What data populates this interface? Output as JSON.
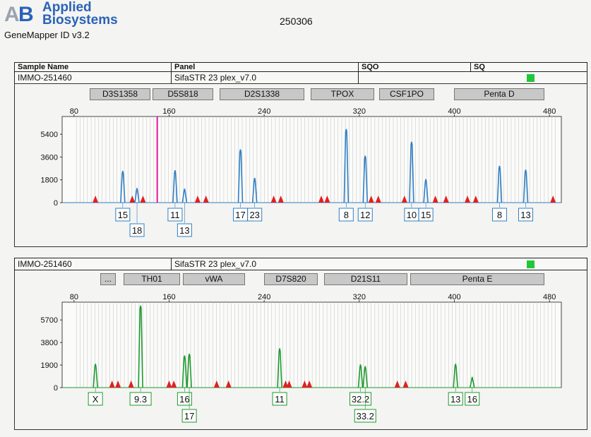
{
  "header": {
    "brand_line1": "Applied",
    "brand_line2": "Biosystems",
    "product": "GeneMapper ID v3.2",
    "run_id": "250306"
  },
  "info_table": {
    "col_sample": "Sample Name",
    "col_panel": "Panel",
    "col_sqo": "SQO",
    "col_sq": "SQ",
    "sample": "IMMO-251460",
    "panel": "SifaSTR 23 plex_v7.0"
  },
  "panel2": {
    "sample": "IMMO-251460",
    "panel": "SifaSTR 23 plex_v7.0",
    "ellipsis": "..."
  },
  "colors": {
    "blue": "#2f7fc4",
    "green": "#1e9a2e",
    "marker": "#e02020",
    "quality": "#22c63a",
    "pink": "#e0189a"
  },
  "chart_data": [
    {
      "type": "line",
      "dye": "blue",
      "x_ticks": [
        80,
        160,
        240,
        320,
        400,
        480
      ],
      "y_ticks": [
        0,
        1800,
        3600,
        5400
      ],
      "xlim": [
        70,
        490
      ],
      "ylim": [
        0,
        6800
      ],
      "loci": [
        "D3S1358",
        "D5S818",
        "D2S1338",
        "TPOX",
        "CSF1PO",
        "Penta D"
      ],
      "peaks": [
        {
          "x": 121,
          "height": 2500
        },
        {
          "x": 133,
          "height": 1150
        },
        {
          "x": 165,
          "height": 2550
        },
        {
          "x": 173,
          "height": 1100
        },
        {
          "x": 220,
          "height": 4200
        },
        {
          "x": 232,
          "height": 1950
        },
        {
          "x": 309,
          "height": 5800
        },
        {
          "x": 325,
          "height": 3700
        },
        {
          "x": 364,
          "height": 4800
        },
        {
          "x": 376,
          "height": 1850
        },
        {
          "x": 438,
          "height": 2900
        },
        {
          "x": 460,
          "height": 2600
        }
      ],
      "markers": [
        98,
        129,
        138,
        184,
        191,
        248,
        254,
        288,
        293,
        330,
        336,
        358,
        384,
        393,
        411,
        418,
        483
      ],
      "allele_labels": [
        {
          "text": "15",
          "x": 121,
          "row": 0
        },
        {
          "text": "18",
          "x": 133,
          "row": 1
        },
        {
          "text": "11",
          "x": 165,
          "row": 0
        },
        {
          "text": "13",
          "x": 173,
          "row": 1
        },
        {
          "text": "17",
          "x": 220,
          "row": 0
        },
        {
          "text": "23",
          "x": 232,
          "row": 0
        },
        {
          "text": "8",
          "x": 309,
          "row": 0
        },
        {
          "text": "12",
          "x": 325,
          "row": 0
        },
        {
          "text": "10",
          "x": 364,
          "row": 0
        },
        {
          "text": "15",
          "x": 376,
          "row": 0
        },
        {
          "text": "8",
          "x": 438,
          "row": 0
        },
        {
          "text": "13",
          "x": 460,
          "row": 0
        }
      ]
    },
    {
      "type": "line",
      "dye": "green",
      "x_ticks": [
        80,
        160,
        240,
        320,
        400,
        480
      ],
      "y_ticks": [
        0,
        1900,
        3800,
        5700
      ],
      "xlim": [
        70,
        490
      ],
      "ylim": [
        0,
        7200
      ],
      "loci": [
        "TH01",
        "vWA",
        "D7S820",
        "D21S11",
        "Penta E"
      ],
      "peaks": [
        {
          "x": 98,
          "height": 2000
        },
        {
          "x": 136,
          "height": 6900
        },
        {
          "x": 173,
          "height": 2700
        },
        {
          "x": 177,
          "height": 2850
        },
        {
          "x": 253,
          "height": 3300
        },
        {
          "x": 321,
          "height": 1950
        },
        {
          "x": 325,
          "height": 1800
        },
        {
          "x": 401,
          "height": 2000
        },
        {
          "x": 415,
          "height": 900
        }
      ],
      "markers": [
        112,
        117,
        128,
        160,
        164,
        200,
        210,
        258,
        261,
        274,
        278,
        352,
        359
      ],
      "allele_labels": [
        {
          "text": "X",
          "x": 98,
          "row": 0
        },
        {
          "text": "9.3",
          "x": 136,
          "row": 0
        },
        {
          "text": "16",
          "x": 173,
          "row": 0
        },
        {
          "text": "17",
          "x": 177,
          "row": 1
        },
        {
          "text": "11",
          "x": 253,
          "row": 0
        },
        {
          "text": "32.2",
          "x": 321,
          "row": 0
        },
        {
          "text": "33.2",
          "x": 325,
          "row": 1
        },
        {
          "text": "13",
          "x": 401,
          "row": 0
        },
        {
          "text": "16",
          "x": 415,
          "row": 0
        }
      ]
    }
  ]
}
